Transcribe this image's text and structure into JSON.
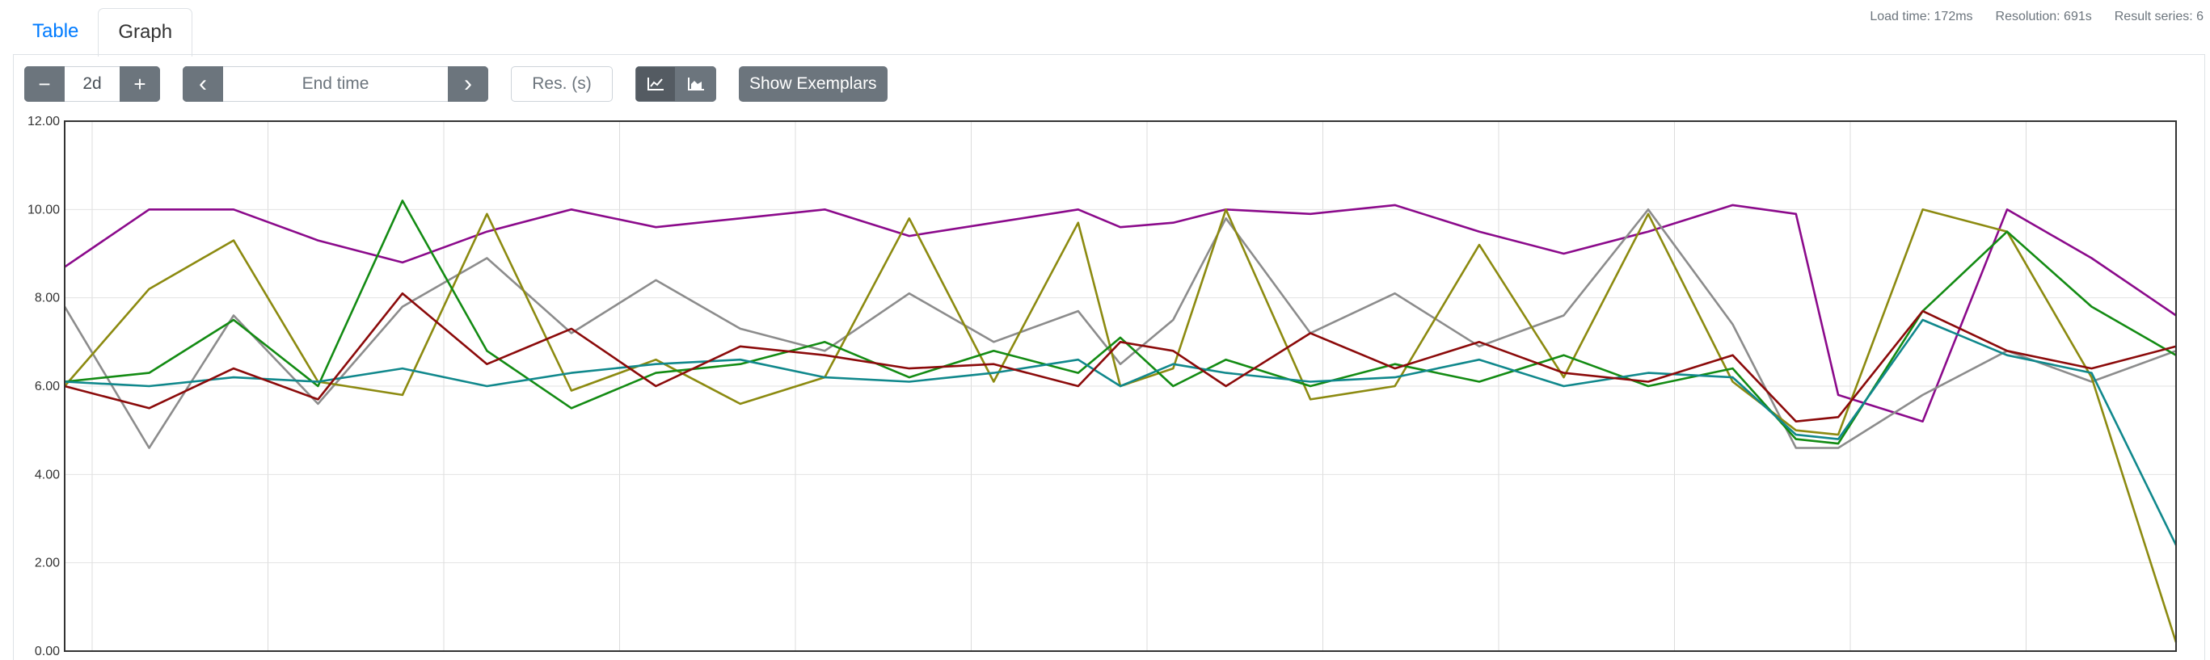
{
  "tabs": {
    "table": "Table",
    "graph": "Graph"
  },
  "stats": {
    "load_time": "Load time: 172ms",
    "resolution": "Resolution: 691s",
    "result_series": "Result series: 6"
  },
  "toolbar": {
    "minus_label": "−",
    "range_value": "2d",
    "plus_label": "+",
    "prev_label": "‹",
    "end_time_placeholder": "End time",
    "next_label": "›",
    "resolution_placeholder": "Res. (s)",
    "exemplars_label": "Show Exemplars"
  },
  "colors": {
    "purple": "#8b0a8b",
    "gray": "#8c8c8c",
    "olive": "#8c8a10",
    "green": "#138b13",
    "teal": "#10888c",
    "maroon": "#8b0a0a"
  },
  "chart_data": {
    "type": "line",
    "ylim": [
      0,
      12
    ],
    "y_ticks": [
      "0.00",
      "2.00",
      "4.00",
      "6.00",
      "8.00",
      "10.00",
      "12.00"
    ],
    "grid": true,
    "x_index": [
      0,
      8,
      16,
      24,
      32,
      40,
      48,
      56,
      64,
      72,
      80,
      88,
      96,
      100,
      105,
      110,
      118,
      126,
      134,
      142,
      150,
      158,
      164,
      168,
      176,
      184,
      192,
      200
    ],
    "series": [
      {
        "color": "#8b0a8b",
        "values": [
          8.7,
          10.0,
          10.0,
          9.3,
          8.8,
          9.5,
          10.0,
          9.6,
          9.8,
          10.0,
          9.4,
          9.7,
          10.0,
          9.6,
          9.7,
          10.0,
          9.9,
          10.1,
          9.5,
          9.0,
          9.5,
          10.1,
          9.9,
          5.8,
          5.2,
          10.0,
          8.9,
          7.6
        ]
      },
      {
        "color": "#8c8c8c",
        "values": [
          7.8,
          4.6,
          7.6,
          5.6,
          7.8,
          8.9,
          7.2,
          8.4,
          7.3,
          6.8,
          8.1,
          7.0,
          7.7,
          6.5,
          7.5,
          9.8,
          7.2,
          8.1,
          6.9,
          7.6,
          10.0,
          7.4,
          4.6,
          4.6,
          5.8,
          6.8,
          6.1,
          6.8
        ]
      },
      {
        "color": "#8c8a10",
        "values": [
          6.0,
          8.2,
          9.3,
          6.1,
          5.8,
          9.9,
          5.9,
          6.6,
          5.6,
          6.2,
          9.8,
          6.1,
          9.7,
          6.0,
          6.4,
          10.0,
          5.7,
          6.0,
          9.2,
          6.2,
          9.9,
          6.1,
          5.0,
          4.9,
          10.0,
          9.5,
          6.2,
          0.2
        ]
      },
      {
        "color": "#138b13",
        "values": [
          6.1,
          6.3,
          7.5,
          6.0,
          10.2,
          6.8,
          5.5,
          6.3,
          6.5,
          7.0,
          6.2,
          6.8,
          6.3,
          7.1,
          6.0,
          6.6,
          6.0,
          6.5,
          6.1,
          6.7,
          6.0,
          6.4,
          4.8,
          4.7,
          7.7,
          9.5,
          7.8,
          6.7
        ]
      },
      {
        "color": "#10888c",
        "values": [
          6.1,
          6.0,
          6.2,
          6.1,
          6.4,
          6.0,
          6.3,
          6.5,
          6.6,
          6.2,
          6.1,
          6.3,
          6.6,
          6.0,
          6.5,
          6.3,
          6.1,
          6.2,
          6.6,
          6.0,
          6.3,
          6.2,
          4.9,
          4.8,
          7.5,
          6.7,
          6.3,
          2.4
        ]
      },
      {
        "color": "#8b0a0a",
        "values": [
          6.0,
          5.5,
          6.4,
          5.7,
          8.1,
          6.5,
          7.3,
          6.0,
          6.9,
          6.7,
          6.4,
          6.5,
          6.0,
          7.0,
          6.8,
          6.0,
          7.2,
          6.4,
          7.0,
          6.3,
          6.1,
          6.7,
          5.2,
          5.3,
          7.7,
          6.8,
          6.4,
          6.9
        ]
      }
    ]
  }
}
